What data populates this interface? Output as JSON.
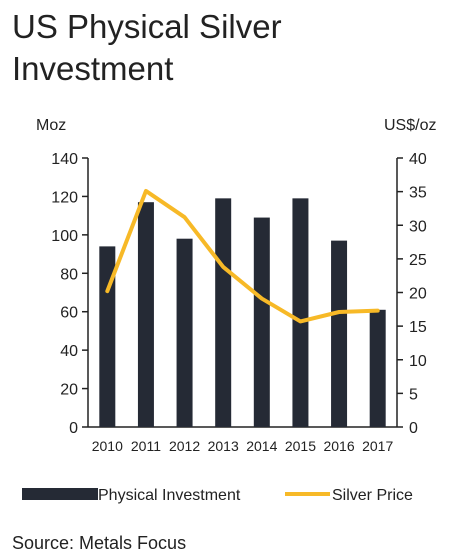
{
  "title": "US Physical Silver Investment",
  "source": "Source: Metals Focus",
  "colors": {
    "bar": "#252a35",
    "line": "#f7b927",
    "axis": "#222222"
  },
  "chart_data": {
    "type": "bar",
    "categories": [
      "2010",
      "2011",
      "2012",
      "2013",
      "2014",
      "2015",
      "2016",
      "2017"
    ],
    "series": [
      {
        "name": "Physical Investment",
        "type": "bar",
        "axis": "left",
        "values": [
          94,
          117,
          98,
          119,
          109,
          119,
          97,
          61
        ]
      },
      {
        "name": "Silver Price",
        "type": "line",
        "axis": "right",
        "values": [
          20.2,
          35.1,
          31.2,
          23.8,
          19.1,
          15.7,
          17.1,
          17.3
        ]
      }
    ],
    "ylabel_left": "Moz",
    "ylabel_right": "US$/oz",
    "ylim_left": [
      0,
      140
    ],
    "ylim_right": [
      0,
      40
    ],
    "yticks_left": [
      "0",
      "20",
      "40",
      "60",
      "80",
      "100",
      "120",
      "140"
    ],
    "yticks_right": [
      "0",
      "5",
      "10",
      "15",
      "20",
      "25",
      "30",
      "35",
      "40"
    ],
    "grid": false,
    "legend_position": "bottom"
  }
}
